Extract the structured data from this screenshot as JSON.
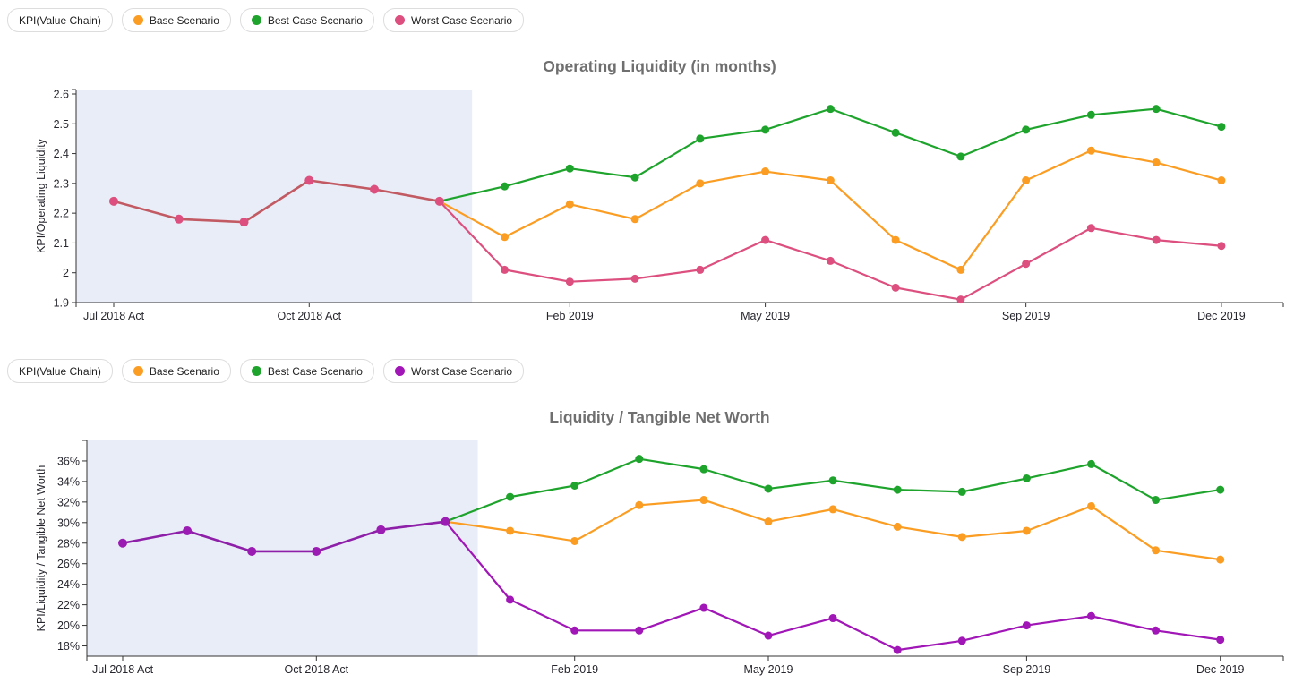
{
  "legends": [
    {
      "kpi_label": "KPI(Value Chain)",
      "items": [
        {
          "label": "Base Scenario",
          "color": "#fb9d23"
        },
        {
          "label": "Best Case Scenario",
          "color": "#1ea42c"
        },
        {
          "label": "Worst Case Scenario",
          "color": "#dc4f7e"
        }
      ]
    },
    {
      "kpi_label": "KPI(Value Chain)",
      "items": [
        {
          "label": "Base Scenario",
          "color": "#fb9d23"
        },
        {
          "label": "Best Case Scenario",
          "color": "#1ea42c"
        },
        {
          "label": "Worst Case Scenario",
          "color": "#a016b6"
        }
      ]
    }
  ],
  "chart_data": [
    {
      "type": "line",
      "title": "Operating Liquidity (in months)",
      "ylabel": "KPI/Operating Liquidity",
      "ylim": [
        1.9,
        2.615
      ],
      "y_ticks": [
        {
          "v": 1.9,
          "label": "1.9"
        },
        {
          "v": 2.0,
          "label": "2"
        },
        {
          "v": 2.1,
          "label": "2.1"
        },
        {
          "v": 2.2,
          "label": "2.2"
        },
        {
          "v": 2.3,
          "label": "2.3"
        },
        {
          "v": 2.4,
          "label": "2.4"
        },
        {
          "v": 2.5,
          "label": "2.5"
        },
        {
          "v": 2.6,
          "label": "2.6"
        }
      ],
      "n_points": 18,
      "x_ticks": [
        {
          "index": 0,
          "label": "Jul 2018 Act"
        },
        {
          "index": 3,
          "label": "Oct 2018 Act"
        },
        {
          "index": 7,
          "label": "Feb 2019"
        },
        {
          "index": 10,
          "label": "May 2019"
        },
        {
          "index": 14,
          "label": "Sep 2019"
        },
        {
          "index": 17,
          "label": "Dec 2019"
        }
      ],
      "shade_end_index": 5.5,
      "shade_color": "#e9edf7",
      "series": [
        {
          "name": "Best Case Scenario",
          "color": "#1ea42c",
          "start_index": 5,
          "line_width": 2.2,
          "marker_r": 4.5,
          "values": [
            2.24,
            2.29,
            2.35,
            2.32,
            2.45,
            2.48,
            2.55,
            2.47,
            2.39,
            2.48,
            2.53,
            2.55,
            2.49
          ]
        },
        {
          "name": "Base Scenario",
          "color": "#fb9d23",
          "start_index": 5,
          "line_width": 2.2,
          "marker_r": 4.5,
          "values": [
            2.24,
            2.12,
            2.23,
            2.18,
            2.3,
            2.34,
            2.31,
            2.11,
            2.01,
            2.31,
            2.41,
            2.37,
            2.31
          ]
        },
        {
          "name": "Worst Case Scenario",
          "color": "#dc4f7e",
          "start_index": 5,
          "line_width": 2.2,
          "marker_r": 4.5,
          "values": [
            2.24,
            2.01,
            1.97,
            1.98,
            2.01,
            2.11,
            2.04,
            1.95,
            1.91,
            2.03,
            2.15,
            2.11,
            2.09
          ]
        },
        {
          "name": "Actual",
          "color": "#c25a63",
          "marker_color": "#dc4f7e",
          "start_index": 0,
          "line_width": 2.6,
          "marker_r": 5,
          "values": [
            2.24,
            2.18,
            2.17,
            2.31,
            2.28,
            2.24
          ]
        }
      ]
    },
    {
      "type": "line",
      "title": "Liquidity / Tangible Net Worth",
      "ylabel": "KPI/Liquidity / Tangible Net Worth",
      "ylim": [
        17,
        38
      ],
      "y_ticks": [
        {
          "v": 18,
          "label": "18%"
        },
        {
          "v": 20,
          "label": "20%"
        },
        {
          "v": 22,
          "label": "22%"
        },
        {
          "v": 24,
          "label": "24%"
        },
        {
          "v": 26,
          "label": "26%"
        },
        {
          "v": 28,
          "label": "28%"
        },
        {
          "v": 30,
          "label": "30%"
        },
        {
          "v": 32,
          "label": "32%"
        },
        {
          "v": 34,
          "label": "34%"
        },
        {
          "v": 36,
          "label": "36%"
        }
      ],
      "n_points": 18,
      "x_ticks": [
        {
          "index": 0,
          "label": "Jul 2018 Act"
        },
        {
          "index": 3,
          "label": "Oct 2018 Act"
        },
        {
          "index": 7,
          "label": "Feb 2019"
        },
        {
          "index": 10,
          "label": "May 2019"
        },
        {
          "index": 14,
          "label": "Sep 2019"
        },
        {
          "index": 17,
          "label": "Dec 2019"
        }
      ],
      "shade_end_index": 5.5,
      "shade_color": "#e9edf7",
      "series": [
        {
          "name": "Best Case Scenario",
          "color": "#1ea42c",
          "start_index": 5,
          "line_width": 2.2,
          "marker_r": 4.5,
          "values": [
            30.1,
            32.5,
            33.6,
            36.2,
            35.2,
            33.3,
            34.1,
            33.2,
            33.0,
            34.3,
            35.7,
            32.2,
            33.2
          ]
        },
        {
          "name": "Base Scenario",
          "color": "#fb9d23",
          "start_index": 5,
          "line_width": 2.2,
          "marker_r": 4.5,
          "values": [
            30.1,
            29.2,
            28.2,
            31.7,
            32.2,
            30.1,
            31.3,
            29.6,
            28.6,
            29.2,
            31.6,
            27.3,
            26.4
          ]
        },
        {
          "name": "Worst Case Scenario",
          "color": "#a016b6",
          "start_index": 5,
          "line_width": 2.2,
          "marker_r": 4.5,
          "values": [
            30.1,
            22.5,
            19.5,
            19.5,
            21.7,
            19.0,
            20.7,
            17.6,
            18.5,
            20.0,
            20.9,
            19.5,
            18.6
          ]
        },
        {
          "name": "Actual",
          "color": "#8e1fa8",
          "marker_color": "#9a1cb3",
          "start_index": 0,
          "line_width": 2.6,
          "marker_r": 5,
          "values": [
            28.0,
            29.2,
            27.2,
            27.2,
            29.3,
            30.1
          ]
        }
      ]
    }
  ]
}
